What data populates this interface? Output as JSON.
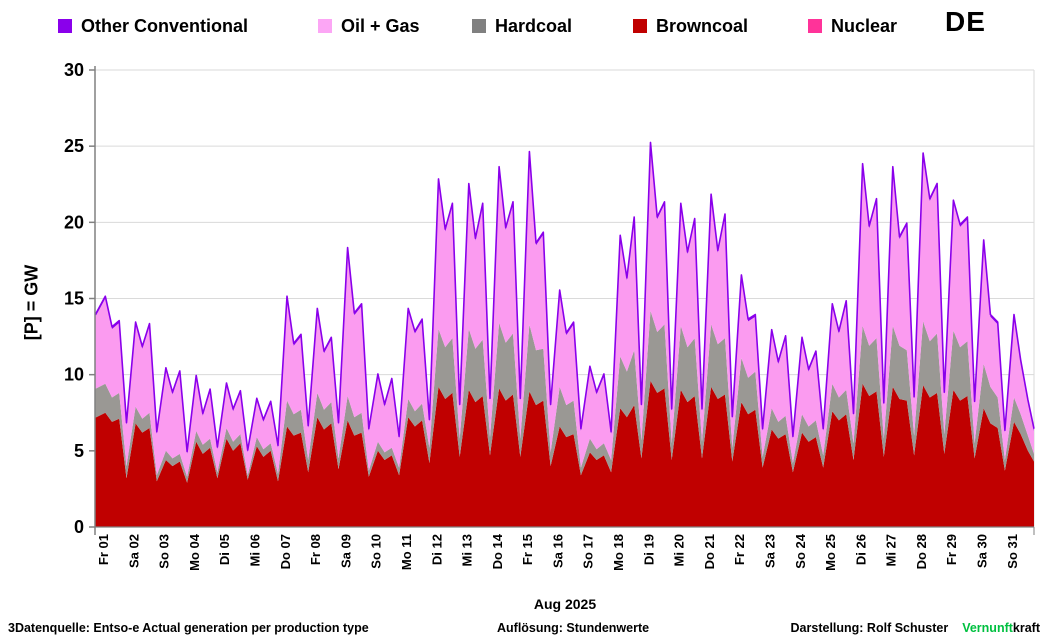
{
  "legend": {
    "items": [
      {
        "label": "Other Conventional",
        "color": "#8A00EB"
      },
      {
        "label": "Oil + Gas",
        "color": "#FCA6F5"
      },
      {
        "label": "Hardcoal",
        "color": "#808080"
      },
      {
        "label": "Browncoal",
        "color": "#C00000"
      },
      {
        "label": "Nuclear",
        "color": "#FF3399"
      }
    ],
    "region_label": "DE"
  },
  "y_axis": {
    "title": "[P] = GW",
    "ticks": [
      0,
      5,
      10,
      15,
      20,
      25,
      30
    ],
    "max": 30
  },
  "x_axis": {
    "labels": [
      "Fr 01",
      "Sa 02",
      "So 03",
      "Mo 04",
      "Di 05",
      "Mi 06",
      "Do 07",
      "Fr 08",
      "Sa 09",
      "So 10",
      "Mo 11",
      "Di 12",
      "Mi 13",
      "Do 14",
      "Fr 15",
      "Sa 16",
      "So 17",
      "Mo 18",
      "Di 19",
      "Mi 20",
      "Do 21",
      "Fr 22",
      "Sa 23",
      "So 24",
      "Mo 25",
      "Di 26",
      "Mi 27",
      "Do 28",
      "Fr 29",
      "Sa 30",
      "So 31"
    ],
    "month_label": "Aug 2025"
  },
  "footer": {
    "left": "3Datenquelle: Entso-e  Actual generation per production type",
    "center": "Auflösung:  Stundenwerte",
    "right": "Darstellung:  Rolf Schuster",
    "brand_green": "Vernunft",
    "brand_black": "kraft",
    "brand_green_color": "#00C040"
  },
  "chart_data": {
    "type": "area",
    "stacked": true,
    "title": "",
    "xlabel": "Aug 2025",
    "ylabel": "[P] = GW",
    "unit": "GW",
    "ylim": [
      0,
      30
    ],
    "grid": true,
    "x_days": 31,
    "anchor_fractions": [
      0.04,
      0.34,
      0.56,
      0.8
    ],
    "anchor_meaning": [
      "night_low",
      "morning_peak",
      "midday_dip",
      "evening_peak"
    ],
    "stack_order": [
      "Nuclear",
      "Browncoal",
      "Hardcoal",
      "Oil + Gas",
      "Other Conventional"
    ],
    "series": [
      {
        "name": "Nuclear",
        "color": "#FF3399",
        "constant": 0
      },
      {
        "name": "Browncoal",
        "color": "#C00000",
        "daily": [
          [
            7.2,
            7.5,
            6.9,
            7.1
          ],
          [
            3.2,
            6.8,
            6.2,
            6.5
          ],
          [
            3.0,
            4.4,
            4.0,
            4.3
          ],
          [
            2.9,
            5.6,
            4.8,
            5.2
          ],
          [
            3.2,
            5.8,
            5.0,
            5.5
          ],
          [
            3.1,
            5.3,
            4.6,
            5.0
          ],
          [
            3.0,
            6.6,
            6.0,
            6.2
          ],
          [
            3.6,
            7.2,
            6.4,
            6.8
          ],
          [
            3.8,
            7.0,
            6.0,
            6.2
          ],
          [
            3.3,
            5.0,
            4.4,
            4.7
          ],
          [
            3.4,
            7.2,
            6.6,
            7.0
          ],
          [
            4.2,
            9.2,
            8.4,
            8.8
          ],
          [
            4.6,
            9.0,
            8.2,
            8.6
          ],
          [
            4.7,
            9.1,
            8.3,
            8.7
          ],
          [
            4.6,
            8.9,
            8.0,
            8.3
          ],
          [
            4.0,
            6.6,
            5.9,
            6.1
          ],
          [
            3.4,
            4.9,
            4.4,
            4.7
          ],
          [
            3.6,
            7.8,
            7.2,
            8.0
          ],
          [
            4.5,
            9.6,
            8.8,
            9.1
          ],
          [
            4.4,
            9.0,
            8.2,
            8.6
          ],
          [
            4.5,
            9.2,
            8.4,
            8.7
          ],
          [
            4.3,
            8.2,
            7.4,
            7.7
          ],
          [
            3.9,
            6.4,
            5.8,
            6.1
          ],
          [
            3.6,
            6.2,
            5.6,
            5.9
          ],
          [
            3.9,
            7.6,
            7.0,
            7.4
          ],
          [
            4.4,
            9.4,
            8.6,
            8.9
          ],
          [
            4.6,
            9.2,
            8.4,
            8.3
          ],
          [
            4.7,
            9.3,
            8.5,
            8.8
          ],
          [
            4.8,
            9.0,
            8.3,
            8.6
          ],
          [
            4.5,
            7.8,
            6.8,
            6.5
          ],
          [
            3.7,
            6.9,
            6.1,
            5.0
          ]
        ],
        "end_value": 4.3
      },
      {
        "name": "Hardcoal",
        "color": "#9A9894",
        "daily": [
          [
            1.9,
            1.9,
            1.6,
            1.7
          ],
          [
            0.8,
            1.1,
            0.9,
            1.0
          ],
          [
            0.4,
            0.6,
            0.5,
            0.5
          ],
          [
            0.4,
            0.7,
            0.6,
            0.6
          ],
          [
            0.4,
            0.7,
            0.6,
            0.6
          ],
          [
            0.3,
            0.6,
            0.5,
            0.5
          ],
          [
            0.5,
            1.7,
            1.4,
            1.5
          ],
          [
            0.8,
            1.6,
            1.3,
            1.4
          ],
          [
            0.7,
            1.6,
            1.2,
            1.3
          ],
          [
            0.4,
            0.6,
            0.5,
            0.5
          ],
          [
            0.5,
            1.2,
            1.0,
            1.1
          ],
          [
            1.0,
            3.8,
            3.4,
            3.6
          ],
          [
            1.2,
            4.0,
            3.5,
            3.7
          ],
          [
            1.2,
            4.3,
            3.8,
            4.0
          ],
          [
            1.2,
            4.4,
            3.6,
            3.4
          ],
          [
            0.9,
            2.6,
            2.1,
            2.2
          ],
          [
            0.5,
            0.9,
            0.7,
            0.8
          ],
          [
            0.8,
            3.4,
            3.0,
            3.6
          ],
          [
            1.2,
            4.6,
            4.0,
            4.2
          ],
          [
            1.1,
            4.2,
            3.6,
            3.8
          ],
          [
            1.1,
            4.1,
            3.6,
            3.7
          ],
          [
            0.9,
            2.9,
            2.4,
            2.5
          ],
          [
            0.7,
            1.4,
            1.1,
            1.2
          ],
          [
            0.6,
            1.2,
            1.0,
            1.1
          ],
          [
            0.8,
            1.8,
            1.5,
            1.6
          ],
          [
            1.1,
            3.8,
            3.3,
            3.5
          ],
          [
            1.2,
            4.0,
            3.5,
            3.3
          ],
          [
            1.3,
            4.2,
            3.7,
            3.9
          ],
          [
            1.3,
            3.9,
            3.5,
            3.6
          ],
          [
            1.0,
            2.9,
            2.4,
            2.0
          ],
          [
            0.7,
            1.6,
            1.3,
            1.0
          ]
        ],
        "end_value": 0.5
      },
      {
        "name": "Oil + Gas",
        "color": "#FB9BF0",
        "daily": [
          [
            4.8,
            5.6,
            4.5,
            4.6
          ],
          [
            2.7,
            5.4,
            4.6,
            5.7
          ],
          [
            2.7,
            5.3,
            4.2,
            5.3
          ],
          [
            1.5,
            3.5,
            1.9,
            3.1
          ],
          [
            1.5,
            2.8,
            2.0,
            2.7
          ],
          [
            1.5,
            2.4,
            1.8,
            2.6
          ],
          [
            1.7,
            6.7,
            4.5,
            4.8
          ],
          [
            2.1,
            5.4,
            3.7,
            4.1
          ],
          [
            2.2,
            9.6,
            6.7,
            7.0
          ],
          [
            2.6,
            4.3,
            3.0,
            4.4
          ],
          [
            1.9,
            5.8,
            5.1,
            5.4
          ],
          [
            1.7,
            9.7,
            7.6,
            8.7
          ],
          [
            2.1,
            9.4,
            7.1,
            8.8
          ],
          [
            2.4,
            10.1,
            7.4,
            8.5
          ],
          [
            2.5,
            11.2,
            6.9,
            7.5
          ],
          [
            3.0,
            6.2,
            4.6,
            5.0
          ],
          [
            2.4,
            4.6,
            3.6,
            4.4
          ],
          [
            1.7,
            7.8,
            6.0,
            8.6
          ],
          [
            2.2,
            10.9,
            7.4,
            7.9
          ],
          [
            2.1,
            7.9,
            6.1,
            7.7
          ],
          [
            2.0,
            8.4,
            6.0,
            8.0
          ],
          [
            1.9,
            5.3,
            3.7,
            3.6
          ],
          [
            1.7,
            5.0,
            3.8,
            5.1
          ],
          [
            1.6,
            4.9,
            3.6,
            4.4
          ],
          [
            1.6,
            5.1,
            4.2,
            5.7
          ],
          [
            1.8,
            10.5,
            7.7,
            9.0
          ],
          [
            2.2,
            10.3,
            7.0,
            8.2
          ],
          [
            2.4,
            10.9,
            9.2,
            9.7
          ],
          [
            2.6,
            8.4,
            7.9,
            8.0
          ],
          [
            2.6,
            8.0,
            4.6,
            4.8
          ],
          [
            1.8,
            5.3,
            3.4,
            2.2
          ]
        ],
        "end_value": 1.5
      },
      {
        "name": "Other Conventional",
        "color": "#8A00EB",
        "constant": 0.15
      }
    ],
    "grid_color": "#DADADA",
    "axis_color": "#808080"
  }
}
